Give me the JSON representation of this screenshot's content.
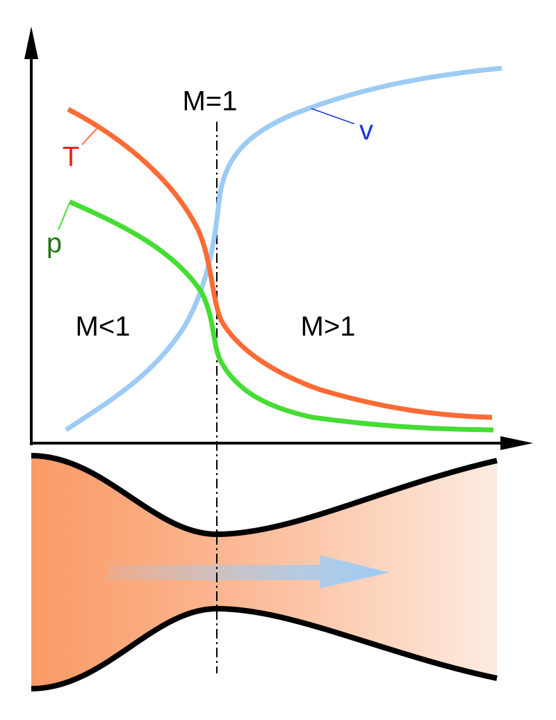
{
  "labels": {
    "mach_equal": "M=1",
    "mach_below": "M<1",
    "mach_above": "M>1",
    "temperature": "T",
    "pressure": "p",
    "velocity": "v"
  }
}
